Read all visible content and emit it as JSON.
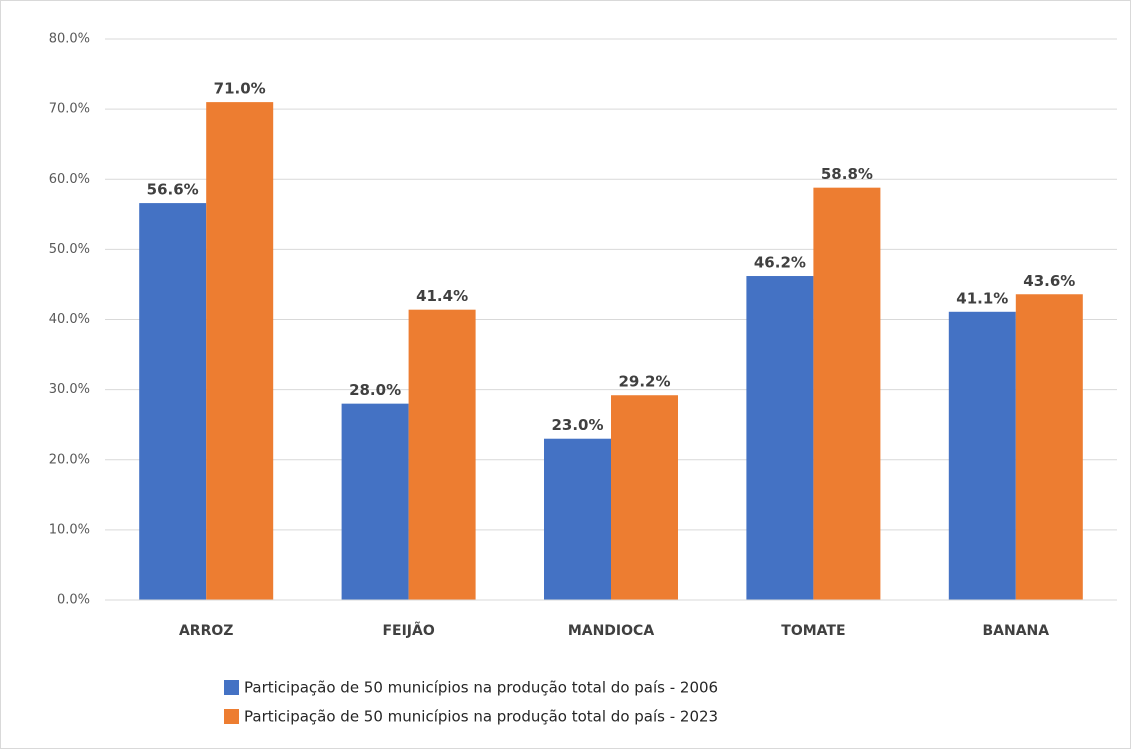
{
  "chart_data": {
    "type": "bar",
    "categories": [
      "ARROZ",
      "FEIJÃO",
      "MANDIOCA",
      "TOMATE",
      "BANANA"
    ],
    "series": [
      {
        "name": "Participação de 50 municípios na produção total do país - 2006",
        "color": "#4472c4",
        "values": [
          56.6,
          28.0,
          23.0,
          46.2,
          41.1
        ],
        "value_labels": [
          "56.6%",
          "28.0%",
          "23.0%",
          "46.2%",
          "41.1%"
        ]
      },
      {
        "name": "Participação de 50 municípios na produção total do país - 2023",
        "color": "#ed7d31",
        "values": [
          71.0,
          41.4,
          29.2,
          58.8,
          43.6
        ],
        "value_labels": [
          "71.0%",
          "41.4%",
          "29.2%",
          "58.8%",
          "43.6%"
        ]
      }
    ],
    "ylim": [
      0,
      80
    ],
    "yticks": [
      {
        "value": 0,
        "label": "0.0%"
      },
      {
        "value": 10,
        "label": "10.0%"
      },
      {
        "value": 20,
        "label": "20.0%"
      },
      {
        "value": 30,
        "label": "30.0%"
      },
      {
        "value": 40,
        "label": "40.0%"
      },
      {
        "value": 50,
        "label": "50.0%"
      },
      {
        "value": 60,
        "label": "60.0%"
      },
      {
        "value": 70,
        "label": "70.0%"
      },
      {
        "value": 80,
        "label": "80.0%"
      }
    ],
    "grid": true,
    "legend": "bottom"
  }
}
